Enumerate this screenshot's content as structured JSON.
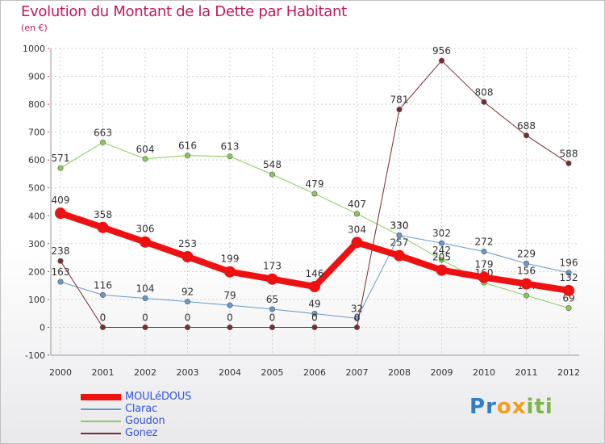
{
  "title": "Evolution du Montant de la Dette par Habitant",
  "subtitle": "(en €)",
  "logo": {
    "text": "Proxiti",
    "letters": [
      "P",
      "r",
      "o",
      "x",
      "i",
      "t",
      "i"
    ]
  },
  "colors": {
    "title": "#c2185b",
    "grid": "#d0d0d0",
    "axis_text": "#333333",
    "logo": [
      "#2e7fc6",
      "#2e7fc6",
      "#f0a020",
      "#f0a020",
      "#7ab648",
      "#7ab648",
      "#7ab648"
    ]
  },
  "chart_data": {
    "type": "line",
    "title": "Evolution du Montant de la Dette par Habitant",
    "ylabel": "(en €)",
    "x": [
      "2000",
      "2001",
      "2002",
      "2003",
      "2004",
      "2005",
      "2006",
      "2007",
      "2008",
      "2009",
      "2010",
      "2011",
      "2012"
    ],
    "ylim": [
      -100,
      1000
    ],
    "yticks": [
      "-100",
      "0",
      "100",
      "200",
      "300",
      "400",
      "500",
      "600",
      "700",
      "800",
      "900",
      "1000"
    ],
    "grid": true,
    "legend_position": "bottom-left",
    "series": [
      {
        "name": "Goudon",
        "color": "#88cc55",
        "width": 1,
        "values": [
          571,
          663,
          604,
          616,
          613,
          548,
          479,
          407,
          330,
          242,
          160,
          114,
          69
        ],
        "labels": [
          "571",
          "663",
          "604",
          "616",
          "613",
          "548",
          "479",
          "407",
          "330",
          "242",
          "160",
          "114",
          "69"
        ]
      },
      {
        "name": "Clarac",
        "color": "#6699cc",
        "width": 1,
        "values": [
          163,
          116,
          104,
          92,
          79,
          65,
          49,
          32,
          330,
          302,
          272,
          229,
          196
        ],
        "labels": [
          "163",
          "116",
          "104",
          "92",
          "79",
          "65",
          "49",
          "32",
          "330",
          "302",
          "272",
          "229",
          "196"
        ]
      },
      {
        "name": "Gonez",
        "color": "#7a2a30",
        "width": 1,
        "values": [
          238,
          0,
          0,
          0,
          0,
          0,
          0,
          0,
          781,
          956,
          808,
          688,
          588
        ],
        "labels": [
          "238",
          "0",
          "0",
          "0",
          "0",
          "0",
          "0",
          "0",
          "781",
          "956",
          "808",
          "688",
          "588"
        ]
      },
      {
        "name": "MOULéDOUS",
        "color": "#ee1111",
        "width": 8,
        "values": [
          409,
          358,
          306,
          253,
          199,
          173,
          146,
          304,
          257,
          205,
          179,
          156,
          132
        ],
        "labels": [
          "409",
          "358",
          "306",
          "253",
          "199",
          "173",
          "146",
          "304",
          "257",
          "205",
          "179",
          "156",
          "132"
        ]
      }
    ]
  },
  "legend": [
    {
      "name": "MOULéDOUS",
      "color": "#ee1111",
      "thickness": 8,
      "text_color": "#3355dd"
    },
    {
      "name": "Clarac",
      "color": "#6699cc",
      "thickness": 2,
      "text_color": "#3355dd"
    },
    {
      "name": "Goudon",
      "color": "#88cc55",
      "thickness": 2,
      "text_color": "#3355dd"
    },
    {
      "name": "Gonez",
      "color": "#7a2a30",
      "thickness": 2,
      "text_color": "#3355dd"
    }
  ]
}
